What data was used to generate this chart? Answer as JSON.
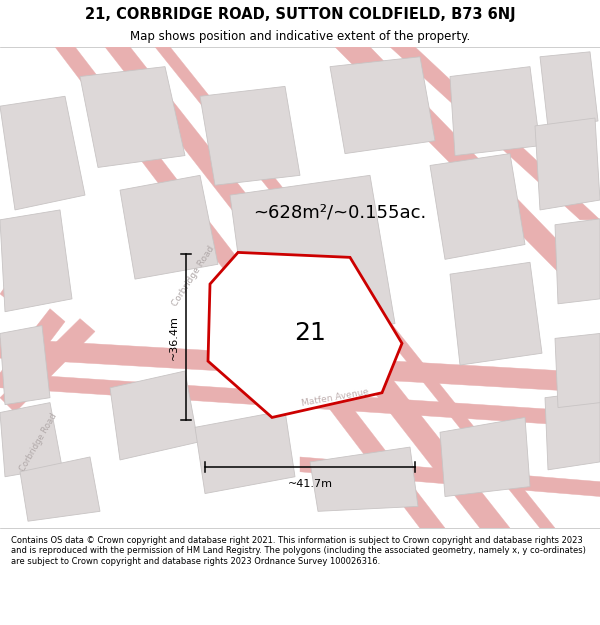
{
  "title": "21, CORBRIDGE ROAD, SUTTON COLDFIELD, B73 6NJ",
  "subtitle": "Map shows position and indicative extent of the property.",
  "footer": "Contains OS data © Crown copyright and database right 2021. This information is subject to Crown copyright and database rights 2023 and is reproduced with the permission of HM Land Registry. The polygons (including the associated geometry, namely x, y co-ordinates) are subject to Crown copyright and database rights 2023 Ordnance Survey 100026316.",
  "area_label": "~628m²/~0.155ac.",
  "number_label": "21",
  "dim_width_label": "~41.7m",
  "dim_height_label": "~36.4m",
  "road_label_corbridge_upper": "Corbridge Road",
  "road_label_matfen": "Matfen Avenue",
  "road_label_corbridge_lower": "Corbridge Road",
  "bg_color": "#f2eeee",
  "block_color": "#ddd8d8",
  "block_edge_color": "#c8c4c4",
  "road_line_color": "#e8b0b0",
  "polygon_color": "#cc0000",
  "polygon_fill": "#ffffff",
  "title_fontsize": 10.5,
  "subtitle_fontsize": 8.5,
  "area_label_fontsize": 13,
  "number_label_fontsize": 18,
  "footer_fontsize": 6.0
}
